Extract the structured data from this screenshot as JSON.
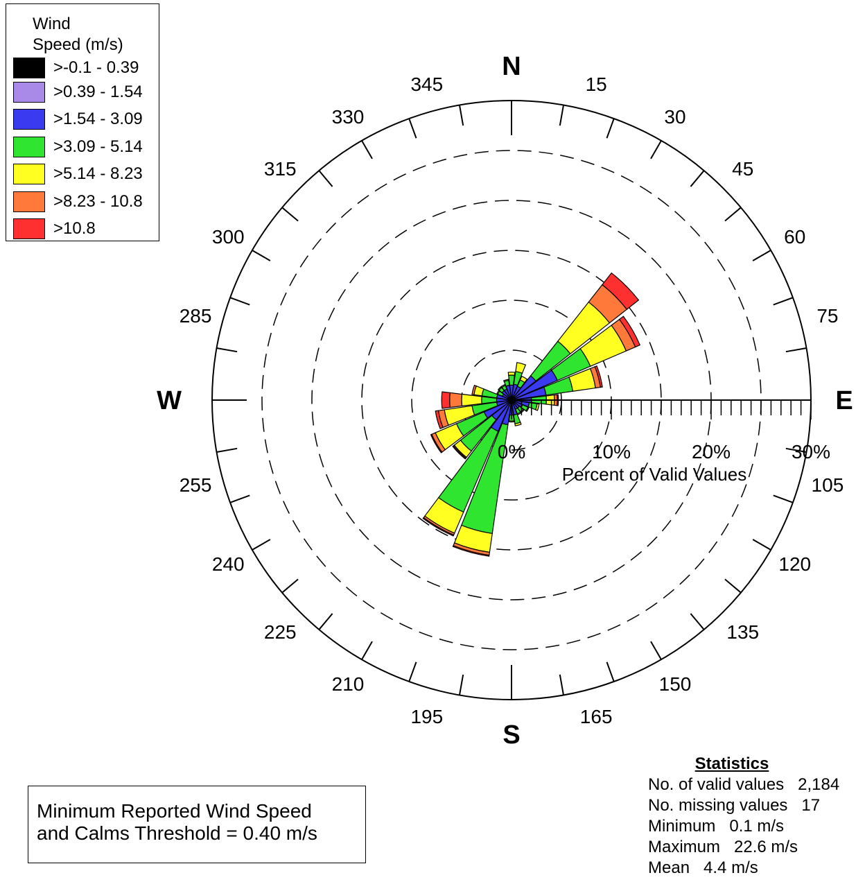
{
  "chart_data": {
    "type": "wind-rose",
    "title": "",
    "axis_label": "Percent of Valid Values",
    "radial_ticks": [
      "0%",
      "10%",
      "20%",
      "30%"
    ],
    "radial_max": 30,
    "cardinals": {
      "N": "N",
      "E": "E",
      "S": "S",
      "W": "W"
    },
    "direction_labels": [
      "15",
      "30",
      "45",
      "60",
      "75",
      "105",
      "120",
      "135",
      "150",
      "165",
      "195",
      "210",
      "225",
      "240",
      "255",
      "285",
      "300",
      "315",
      "330",
      "345"
    ],
    "bin_colors": [
      "#000000",
      "#a98ae8",
      "#3a3af0",
      "#2fe52f",
      "#ffff22",
      "#ff7a3a",
      "#ff3030"
    ],
    "directions": [
      {
        "dir": 0,
        "cumulative": [
          0.1,
          0.3,
          1.5,
          2.5,
          2.8,
          2.8,
          2.8
        ]
      },
      {
        "dir": 15,
        "cumulative": [
          0.1,
          0.3,
          1.6,
          2.9,
          3.8,
          3.8,
          3.8
        ]
      },
      {
        "dir": 30,
        "cumulative": [
          0.1,
          0.3,
          1.5,
          2.2,
          2.6,
          2.6,
          2.6
        ]
      },
      {
        "dir": 45,
        "cumulative": [
          0.1,
          0.4,
          3.1,
          7.5,
          12.5,
          14.7,
          16.2
        ]
      },
      {
        "dir": 60,
        "cumulative": [
          0.1,
          0.4,
          5.0,
          8.6,
          12.5,
          13.5,
          14.0
        ]
      },
      {
        "dir": 75,
        "cumulative": [
          0.1,
          0.3,
          3.5,
          6.2,
          8.5,
          9.0,
          9.2
        ]
      },
      {
        "dir": 90,
        "cumulative": [
          0.1,
          0.3,
          2.0,
          3.5,
          4.3,
          4.6,
          4.7
        ]
      },
      {
        "dir": 105,
        "cumulative": [
          0.1,
          0.3,
          1.8,
          2.6,
          2.8,
          2.8,
          2.8
        ]
      },
      {
        "dir": 120,
        "cumulative": [
          0.1,
          0.2,
          1.2,
          1.8,
          1.9,
          1.9,
          1.9
        ]
      },
      {
        "dir": 135,
        "cumulative": [
          0.1,
          0.2,
          1.0,
          1.5,
          1.6,
          1.6,
          1.6
        ]
      },
      {
        "dir": 150,
        "cumulative": [
          0.1,
          0.2,
          1.0,
          1.5,
          1.6,
          1.6,
          1.6
        ]
      },
      {
        "dir": 165,
        "cumulative": [
          0.1,
          0.2,
          1.5,
          2.4,
          2.6,
          2.6,
          2.6
        ]
      },
      {
        "dir": 180,
        "cumulative": [
          0.1,
          0.3,
          1.5,
          2.1,
          2.2,
          2.2,
          2.2
        ]
      },
      {
        "dir": 195,
        "cumulative": [
          0.1,
          0.3,
          2.5,
          13.5,
          15.4,
          15.7,
          15.8
        ]
      },
      {
        "dir": 210,
        "cumulative": [
          0.1,
          0.4,
          3.4,
          12.2,
          14.5,
          14.7,
          14.8
        ]
      },
      {
        "dir": 225,
        "cumulative": [
          0.1,
          0.3,
          2.5,
          6.5,
          7.3,
          7.4,
          7.5
        ]
      },
      {
        "dir": 240,
        "cumulative": [
          0.1,
          0.3,
          3.0,
          6.0,
          8.3,
          8.7,
          8.8
        ]
      },
      {
        "dir": 255,
        "cumulative": [
          0.1,
          0.3,
          1.5,
          4.0,
          6.8,
          7.4,
          7.7
        ]
      },
      {
        "dir": 270,
        "cumulative": [
          0.1,
          0.3,
          1.5,
          3.0,
          5.0,
          6.2,
          7.0
        ]
      },
      {
        "dir": 285,
        "cumulative": [
          0.1,
          0.2,
          1.5,
          3.0,
          3.8,
          4.0,
          4.0
        ]
      },
      {
        "dir": 300,
        "cumulative": [
          0.1,
          0.2,
          1.0,
          1.5,
          1.6,
          1.6,
          1.6
        ]
      },
      {
        "dir": 315,
        "cumulative": [
          0.1,
          0.2,
          1.2,
          1.6,
          1.7,
          1.7,
          1.7
        ]
      },
      {
        "dir": 330,
        "cumulative": [
          0.1,
          0.2,
          1.2,
          1.6,
          1.7,
          1.7,
          1.7
        ]
      },
      {
        "dir": 345,
        "cumulative": [
          0.1,
          0.2,
          1.5,
          2.0,
          2.1,
          2.1,
          2.1
        ]
      }
    ]
  },
  "legend": {
    "title_line1": "Wind",
    "title_line2": "Speed (m/s)",
    "bins": [
      {
        "label": ">-0.1 - 0.39",
        "color": "#000000"
      },
      {
        "label": ">0.39 - 1.54",
        "color": "#a98ae8"
      },
      {
        "label": ">1.54 - 3.09",
        "color": "#3a3af0"
      },
      {
        "label": ">3.09 - 5.14",
        "color": "#2fe52f"
      },
      {
        "label": ">5.14 - 8.23",
        "color": "#ffff22"
      },
      {
        "label": ">8.23 - 10.8",
        "color": "#ff7a3a"
      },
      {
        "label": ">10.8",
        "color": "#ff3030"
      }
    ]
  },
  "calms": {
    "line1": "Minimum Reported Wind Speed",
    "line2": "and Calms Threshold = 0.40 m/s"
  },
  "statistics": {
    "title": "Statistics",
    "rows": [
      "No. of valid values   2,184",
      "No. missing values   17",
      "Minimum   0.1 m/s",
      "Maximum   22.6 m/s",
      "Mean   4.4 m/s"
    ]
  }
}
